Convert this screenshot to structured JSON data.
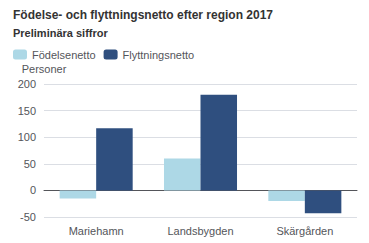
{
  "chart_data": {
    "type": "bar",
    "title": "Födelse- och flyttningsnetto efter region 2017",
    "subtitle": "Preliminära siffror",
    "ylabel": "Personer",
    "categories": [
      "Mariehamn",
      "Landsbygden",
      "Skärgården"
    ],
    "series": [
      {
        "name": "Födelsenetto",
        "color": "#add8e6",
        "values": [
          -15,
          60,
          -20
        ]
      },
      {
        "name": "Flyttningsnetto",
        "color": "#2f4f7f",
        "values": [
          117,
          180,
          -43
        ]
      }
    ],
    "ylim": [
      -50,
      200
    ],
    "yticks": [
      -50,
      0,
      50,
      100,
      150,
      200
    ],
    "grid": true,
    "legend": "upper left"
  }
}
